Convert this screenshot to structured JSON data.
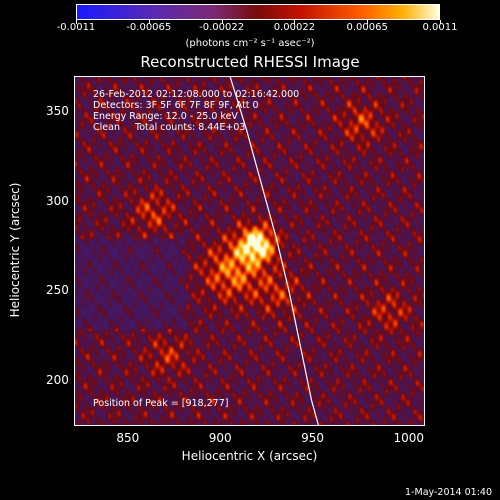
{
  "colorbar": {
    "ticks": [
      "-0.0011",
      "-0.00065",
      "-0.00022",
      "0.00022",
      "0.00065",
      "0.0011"
    ],
    "unit": "(photons cm⁻² s⁻¹ asec⁻²)"
  },
  "title": "Reconstructed RHESSI Image",
  "info": {
    "time": "26-Feb-2012 02:12:08.000 to 02:16:42.000",
    "detectors": "Detectors: 3F 5F 6F 7F 8F 9F, Att 0",
    "energy": "Energy Range: 12.0 - 25.0 keV",
    "clean": "Clean     Total counts: 8.44E+03",
    "peak": "Position of Peak = [918,277]"
  },
  "footer": "1-May-2014 01:40",
  "chart_data": {
    "type": "heatmap",
    "title": "Reconstructed RHESSI Image",
    "xlabel": "Heliocentric X (arcsec)",
    "ylabel": "Heliocentric Y (arcsec)",
    "xlim": [
      820,
      1010
    ],
    "ylim": [
      175,
      370
    ],
    "x_ticks": [
      "850",
      "900",
      "950",
      "1000"
    ],
    "y_ticks": [
      "200",
      "250",
      "300",
      "350"
    ],
    "colorbar_range": [
      -0.0011,
      0.0011
    ],
    "peak": {
      "x": 918,
      "y": 277
    },
    "limb_curve": [
      [
        904,
        370
      ],
      [
        913,
        340
      ],
      [
        921,
        310
      ],
      [
        929,
        280
      ],
      [
        936,
        250
      ],
      [
        942,
        220
      ],
      [
        948,
        190
      ],
      [
        952,
        175
      ]
    ],
    "sources": [
      {
        "x": 918,
        "y": 277,
        "amp": 1.0,
        "sigma": 7
      },
      {
        "x": 905,
        "y": 262,
        "amp": 0.55,
        "sigma": 11
      },
      {
        "x": 930,
        "y": 250,
        "amp": 0.3,
        "sigma": 9
      },
      {
        "x": 862,
        "y": 295,
        "amp": 0.35,
        "sigma": 8
      },
      {
        "x": 975,
        "y": 345,
        "amp": 0.35,
        "sigma": 8
      },
      {
        "x": 990,
        "y": 240,
        "amp": 0.3,
        "sigma": 8
      },
      {
        "x": 870,
        "y": 215,
        "amp": 0.3,
        "sigma": 8
      }
    ]
  }
}
